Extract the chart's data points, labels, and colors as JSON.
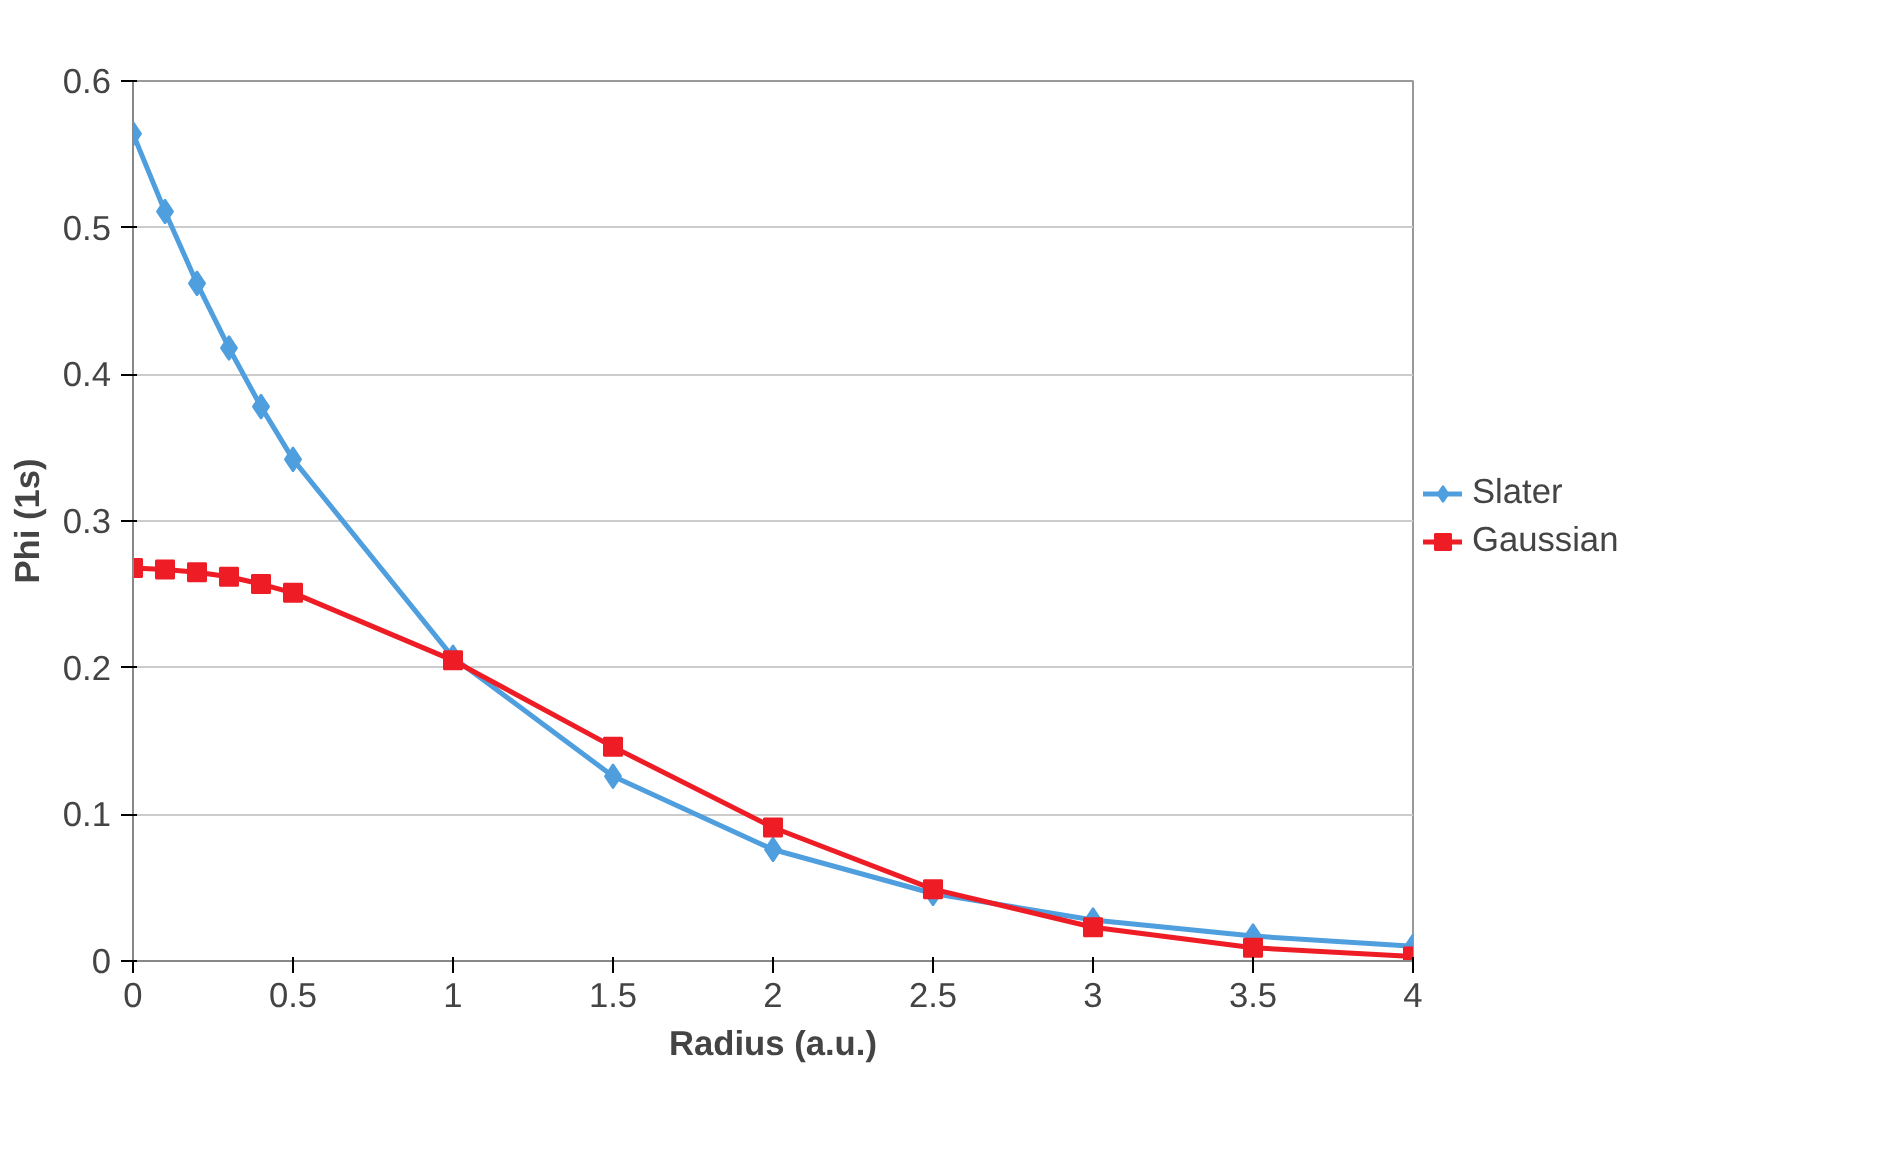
{
  "chart_data": {
    "type": "line",
    "xlabel": "Radius (a.u.)",
    "ylabel": "Phi (1s)",
    "x": [
      0,
      0.1,
      0.2,
      0.3,
      0.4,
      0.5,
      1,
      1.5,
      2,
      2.5,
      3,
      3.5,
      4
    ],
    "series": [
      {
        "name": "Slater",
        "color": "#4f9fdf",
        "marker": "diamond",
        "values": [
          0.564,
          0.511,
          0.462,
          0.418,
          0.378,
          0.342,
          0.207,
          0.126,
          0.076,
          0.046,
          0.028,
          0.017,
          0.01
        ]
      },
      {
        "name": "Gaussian",
        "color": "#ee1c25",
        "marker": "square",
        "values": [
          0.268,
          0.267,
          0.265,
          0.262,
          0.257,
          0.251,
          0.205,
          0.146,
          0.091,
          0.049,
          0.023,
          0.009,
          0.003
        ]
      }
    ],
    "xlim": [
      0,
      4
    ],
    "xticks": [
      0,
      {
        "value": 0.5,
        "label": "0.5"
      },
      1,
      {
        "value": 1.5,
        "label": "1.5"
      },
      2,
      {
        "value": 2.5,
        "label": "2.5"
      },
      3,
      {
        "value": 3.5,
        "label": "3.5"
      },
      4
    ],
    "ylim": [
      0,
      0.6
    ],
    "yticks": [
      0,
      0.1,
      0.2,
      0.3,
      0.4,
      0.5,
      0.6
    ],
    "grid": "y",
    "legend": "right",
    "line_style": "solid"
  }
}
